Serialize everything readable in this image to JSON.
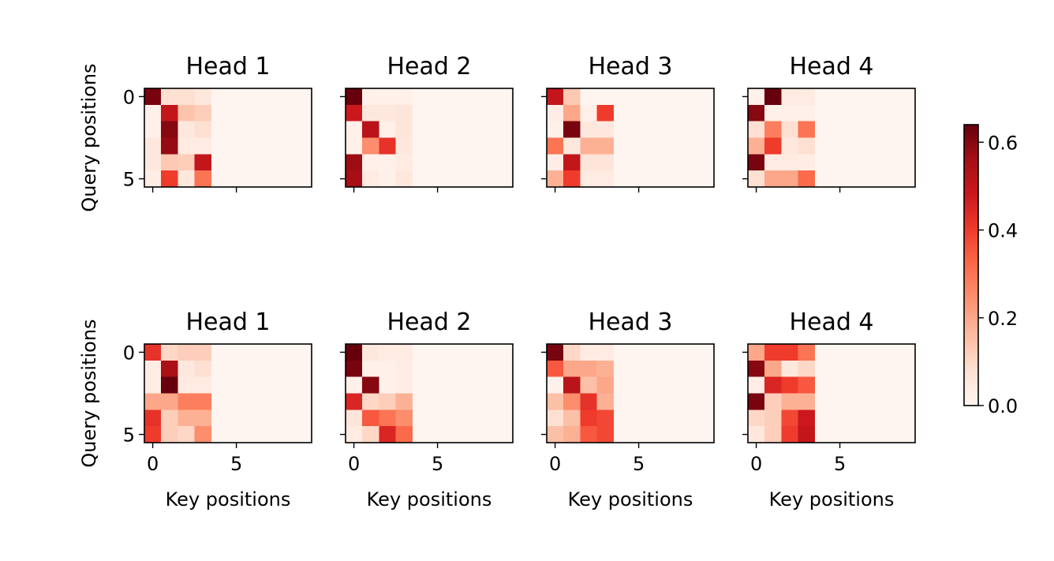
{
  "chart_data": {
    "type": "heatmap",
    "layout": {
      "rows": 2,
      "cols": 4
    },
    "colormap": {
      "name": "Reds",
      "low": "#fff5f0",
      "high": "#67000d"
    },
    "colorbar": {
      "vmin": 0.0,
      "vmax": 0.64,
      "ticks": [
        0.0,
        0.2,
        0.4,
        0.6
      ],
      "tick_labels": [
        "0.0",
        "0.2",
        "0.4",
        "0.6"
      ]
    },
    "xlabel": "Key positions",
    "ylabel": "Query positions",
    "xticks": [
      0,
      5
    ],
    "yticks": [
      0,
      5
    ],
    "panels": [
      {
        "title": "Head 1",
        "row": 0,
        "col": 0,
        "values": [
          [
            0.62,
            0.08,
            0.08,
            0.05,
            0,
            0,
            0,
            0,
            0,
            0
          ],
          [
            0.02,
            0.5,
            0.14,
            0.12,
            0,
            0,
            0,
            0,
            0,
            0
          ],
          [
            0.02,
            0.6,
            0.05,
            0.08,
            0,
            0,
            0,
            0,
            0,
            0
          ],
          [
            0.05,
            0.58,
            0.04,
            0.04,
            0,
            0,
            0,
            0,
            0,
            0
          ],
          [
            0.05,
            0.13,
            0.12,
            0.5,
            0,
            0,
            0,
            0,
            0,
            0
          ],
          [
            0.03,
            0.4,
            0.05,
            0.3,
            0,
            0,
            0,
            0,
            0,
            0
          ]
        ]
      },
      {
        "title": "Head 2",
        "row": 0,
        "col": 1,
        "values": [
          [
            0.64,
            0.02,
            0.02,
            0.02,
            0,
            0,
            0,
            0,
            0,
            0
          ],
          [
            0.48,
            0.05,
            0.05,
            0.06,
            0,
            0,
            0,
            0,
            0,
            0
          ],
          [
            0.02,
            0.52,
            0.02,
            0.06,
            0,
            0,
            0,
            0,
            0,
            0
          ],
          [
            0.02,
            0.25,
            0.42,
            0.05,
            0,
            0,
            0,
            0,
            0,
            0
          ],
          [
            0.57,
            0.02,
            0.02,
            0.04,
            0,
            0,
            0,
            0,
            0,
            0
          ],
          [
            0.56,
            0.04,
            0.02,
            0.05,
            0,
            0,
            0,
            0,
            0,
            0
          ]
        ]
      },
      {
        "title": "Head 3",
        "row": 0,
        "col": 2,
        "values": [
          [
            0.5,
            0.13,
            0,
            0,
            0,
            0,
            0,
            0,
            0,
            0
          ],
          [
            0.03,
            0.2,
            0.02,
            0.4,
            0,
            0,
            0,
            0,
            0,
            0
          ],
          [
            0.02,
            0.62,
            0.05,
            0.05,
            0,
            0,
            0,
            0,
            0,
            0
          ],
          [
            0.3,
            0.05,
            0.18,
            0.18,
            0,
            0,
            0,
            0,
            0,
            0
          ],
          [
            0.03,
            0.5,
            0.06,
            0.06,
            0,
            0,
            0,
            0,
            0,
            0
          ],
          [
            0.18,
            0.4,
            0.04,
            0.04,
            0,
            0,
            0,
            0,
            0,
            0
          ]
        ]
      },
      {
        "title": "Head 4",
        "row": 0,
        "col": 3,
        "values": [
          [
            0.02,
            0.64,
            0.04,
            0.04,
            0,
            0,
            0,
            0,
            0,
            0
          ],
          [
            0.6,
            0.02,
            0.02,
            0.02,
            0,
            0,
            0,
            0,
            0,
            0
          ],
          [
            0.08,
            0.28,
            0.08,
            0.3,
            0,
            0,
            0,
            0,
            0,
            0
          ],
          [
            0.18,
            0.4,
            0.05,
            0.08,
            0,
            0,
            0,
            0,
            0,
            0
          ],
          [
            0.62,
            0.04,
            0.04,
            0.03,
            0,
            0,
            0,
            0,
            0,
            0
          ],
          [
            0.08,
            0.2,
            0.2,
            0.32,
            0,
            0,
            0,
            0,
            0,
            0
          ]
        ]
      },
      {
        "title": "Head 1",
        "row": 1,
        "col": 0,
        "values": [
          [
            0.42,
            0.1,
            0.12,
            0.12,
            0,
            0,
            0,
            0,
            0,
            0
          ],
          [
            0.03,
            0.55,
            0.05,
            0.08,
            0,
            0,
            0,
            0,
            0,
            0
          ],
          [
            0.03,
            0.64,
            0.04,
            0.04,
            0,
            0,
            0,
            0,
            0,
            0
          ],
          [
            0.2,
            0.2,
            0.28,
            0.28,
            0,
            0,
            0,
            0,
            0,
            0
          ],
          [
            0.42,
            0.12,
            0.18,
            0.18,
            0,
            0,
            0,
            0,
            0,
            0
          ],
          [
            0.4,
            0.12,
            0.1,
            0.25,
            0,
            0,
            0,
            0,
            0,
            0
          ]
        ]
      },
      {
        "title": "Head 2",
        "row": 1,
        "col": 1,
        "values": [
          [
            0.64,
            0.05,
            0.04,
            0.04,
            0,
            0,
            0,
            0,
            0,
            0
          ],
          [
            0.62,
            0.02,
            0.02,
            0.03,
            0,
            0,
            0,
            0,
            0,
            0
          ],
          [
            0.02,
            0.6,
            0.02,
            0.03,
            0,
            0,
            0,
            0,
            0,
            0
          ],
          [
            0.45,
            0.1,
            0.12,
            0.18,
            0,
            0,
            0,
            0,
            0,
            0
          ],
          [
            0.06,
            0.35,
            0.3,
            0.25,
            0,
            0,
            0,
            0,
            0,
            0
          ],
          [
            0.04,
            0.1,
            0.45,
            0.32,
            0,
            0,
            0,
            0,
            0,
            0
          ]
        ]
      },
      {
        "title": "Head 3",
        "row": 1,
        "col": 2,
        "values": [
          [
            0.62,
            0.1,
            0.04,
            0.04,
            0,
            0,
            0,
            0,
            0,
            0
          ],
          [
            0.35,
            0.2,
            0.2,
            0.18,
            0,
            0,
            0,
            0,
            0,
            0
          ],
          [
            0.02,
            0.52,
            0.15,
            0.2,
            0,
            0,
            0,
            0,
            0,
            0
          ],
          [
            0.15,
            0.25,
            0.42,
            0.18,
            0,
            0,
            0,
            0,
            0,
            0
          ],
          [
            0.08,
            0.15,
            0.4,
            0.38,
            0,
            0,
            0,
            0,
            0,
            0
          ],
          [
            0.15,
            0.18,
            0.35,
            0.38,
            0,
            0,
            0,
            0,
            0,
            0
          ]
        ]
      },
      {
        "title": "Head 4",
        "row": 1,
        "col": 3,
        "values": [
          [
            0.2,
            0.4,
            0.4,
            0.3,
            0,
            0,
            0,
            0,
            0,
            0
          ],
          [
            0.6,
            0.2,
            0.05,
            0.1,
            0,
            0,
            0,
            0,
            0,
            0
          ],
          [
            0.03,
            0.45,
            0.4,
            0.35,
            0,
            0,
            0,
            0,
            0,
            0
          ],
          [
            0.62,
            0.12,
            0.18,
            0.18,
            0,
            0,
            0,
            0,
            0,
            0
          ],
          [
            0.1,
            0.12,
            0.38,
            0.48,
            0,
            0,
            0,
            0,
            0,
            0
          ],
          [
            0.05,
            0.12,
            0.4,
            0.5,
            0,
            0,
            0,
            0,
            0,
            0
          ]
        ]
      }
    ]
  }
}
